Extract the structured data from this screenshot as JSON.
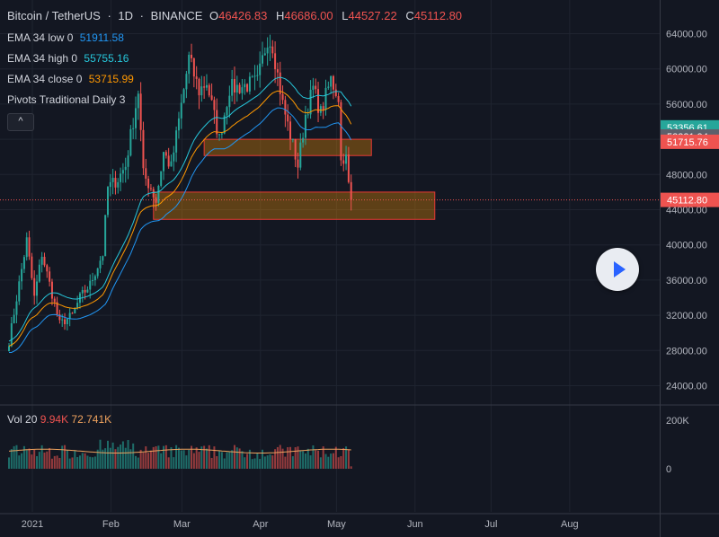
{
  "header": {
    "symbol": "Bitcoin / TetherUS",
    "interval": "1D",
    "exchange": "BINANCE",
    "ohlc": [
      {
        "k": "O",
        "v": "46426.83"
      },
      {
        "k": "H",
        "v": "46686.00"
      },
      {
        "k": "L",
        "v": "44527.22"
      },
      {
        "k": "C",
        "v": "45112.80"
      }
    ]
  },
  "indicators": [
    {
      "label": "EMA 34 low 0",
      "value": "51911.58",
      "color": "#2196f3"
    },
    {
      "label": "EMA 34 high 0",
      "value": "55755.16",
      "color": "#26c6da"
    },
    {
      "label": "EMA 34 close 0",
      "value": "53715.99",
      "color": "#ff9800"
    },
    {
      "label": "Pivots Traditional Daily 3",
      "value": "",
      "color": "#d1d4dc"
    }
  ],
  "collapse_button": "^",
  "volume": {
    "label": "Vol 20",
    "value1": "9.94K",
    "value2": "72.741K"
  },
  "chart_data": {
    "type": "candlestick",
    "y_axis_ticks": [
      "64000.00",
      "60000.00",
      "56000.00",
      "52000.00",
      "48000.00",
      "44000.00",
      "40000.00",
      "36000.00",
      "32000.00",
      "28000.00",
      "24000.00"
    ],
    "ylim": [
      21800,
      66400
    ],
    "x_axis_ticks": [
      "2021",
      "Feb",
      "Mar",
      "Apr",
      "May",
      "Jun",
      "Jul",
      "Aug"
    ],
    "volume_ticks": [
      "200K",
      "0"
    ],
    "price_labels": [
      {
        "value": "53356.61",
        "color": "#26a69a"
      },
      {
        "value": "52321.94",
        "color": "#5d606b"
      },
      {
        "value": "51715.76",
        "color": "#ef5350"
      },
      {
        "value": "45112.80",
        "color": "#ef5350"
      }
    ],
    "last_price": 45112.8,
    "zones": [
      {
        "from_date": "2021-03-19",
        "to_date": "2021-05-24",
        "low": 50150,
        "high": 52000
      },
      {
        "from_date": "2021-02-27",
        "to_date": "2021-06-18",
        "low": 42900,
        "high": 46000
      }
    ],
    "waypoints": [
      [
        "2021-01-01",
        29000
      ],
      [
        "2021-01-08",
        40500
      ],
      [
        "2021-01-11",
        34000
      ],
      [
        "2021-01-14",
        39000
      ],
      [
        "2021-01-21",
        31000
      ],
      [
        "2021-01-26",
        32000
      ],
      [
        "2021-01-29",
        34000
      ],
      [
        "2021-02-02",
        35500
      ],
      [
        "2021-02-07",
        39000
      ],
      [
        "2021-02-09",
        46500
      ],
      [
        "2021-02-13",
        47500
      ],
      [
        "2021-02-16",
        49000
      ],
      [
        "2021-02-21",
        57500
      ],
      [
        "2021-02-23",
        48000
      ],
      [
        "2021-02-26",
        46500
      ],
      [
        "2021-02-28",
        45000
      ],
      [
        "2021-03-03",
        50500
      ],
      [
        "2021-03-06",
        48800
      ],
      [
        "2021-03-13",
        61200
      ],
      [
        "2021-03-17",
        57500
      ],
      [
        "2021-03-20",
        58500
      ],
      [
        "2021-03-25",
        52000
      ],
      [
        "2021-03-29",
        57800
      ],
      [
        "2021-04-03",
        58000
      ],
      [
        "2021-04-09",
        58500
      ],
      [
        "2021-04-13",
        63500
      ],
      [
        "2021-04-15",
        62700
      ],
      [
        "2021-04-19",
        56000
      ],
      [
        "2021-04-25",
        49000
      ],
      [
        "2021-04-28",
        54800
      ],
      [
        "2021-05-01",
        57800
      ],
      [
        "2021-05-04",
        55000
      ],
      [
        "2021-05-08",
        58800
      ],
      [
        "2021-05-11",
        56800
      ],
      [
        "2021-05-12",
        49500
      ],
      [
        "2021-05-13",
        50000
      ],
      [
        "2021-05-14",
        49800
      ],
      [
        "2021-05-15",
        46800
      ],
      [
        "2021-05-16",
        45112
      ]
    ],
    "ema_low_last": 51911.58,
    "ema_high_last": 55755.16,
    "ema_close_last": 53715.99,
    "volume_ma_last": 72741,
    "volume_last": 9940,
    "volume_max_axis": 200000
  }
}
